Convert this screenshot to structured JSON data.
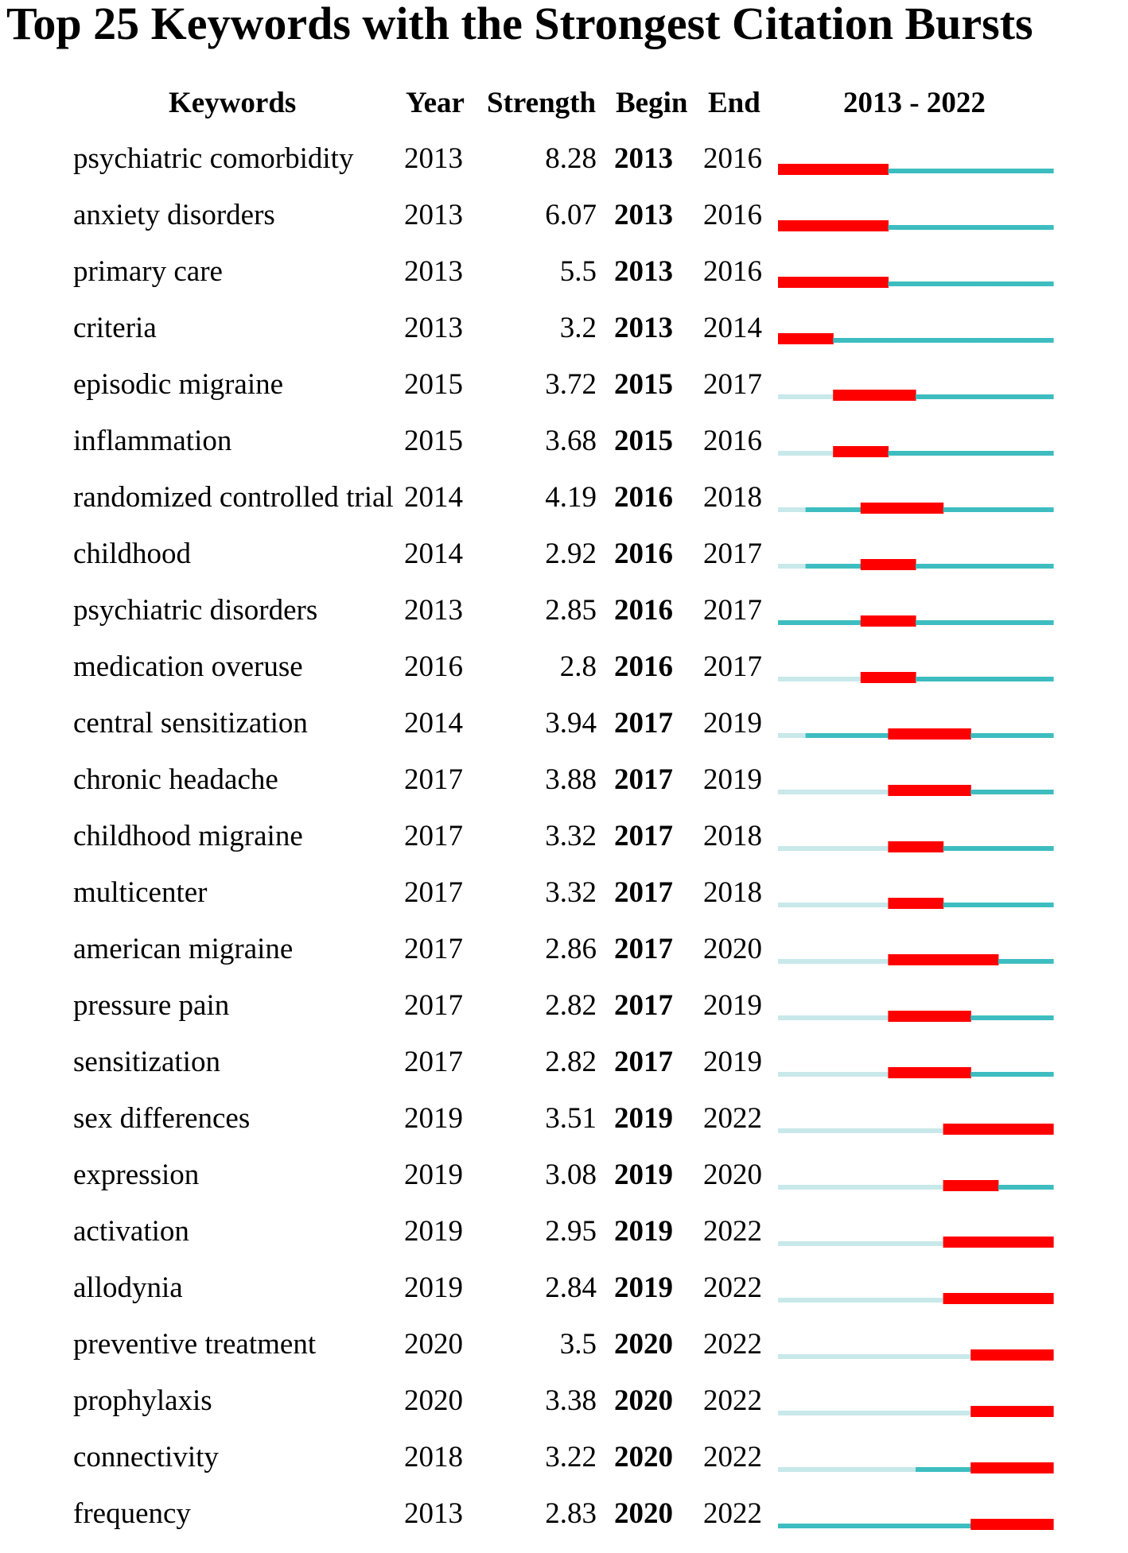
{
  "colors": {
    "burst": "#ff0000",
    "active": "#3dbdc0",
    "inactive": "#c8e8ea"
  },
  "chart_data": {
    "type": "table",
    "title": "Top 25 Keywords with the Strongest Citation Bursts",
    "columns": [
      "Keywords",
      "Year",
      "Strength",
      "Begin",
      "End",
      "2013 - 2022"
    ],
    "range": [
      2013,
      2022
    ],
    "rows": [
      {
        "keyword": "psychiatric comorbidity",
        "year": "2013",
        "strength": "8.28",
        "begin": "2013",
        "end": "2016"
      },
      {
        "keyword": "anxiety disorders",
        "year": "2013",
        "strength": "6.07",
        "begin": "2013",
        "end": "2016"
      },
      {
        "keyword": "primary care",
        "year": "2013",
        "strength": "5.5",
        "begin": "2013",
        "end": "2016"
      },
      {
        "keyword": "criteria",
        "year": "2013",
        "strength": "3.2",
        "begin": "2013",
        "end": "2014"
      },
      {
        "keyword": "episodic migraine",
        "year": "2015",
        "strength": "3.72",
        "begin": "2015",
        "end": "2017"
      },
      {
        "keyword": "inflammation",
        "year": "2015",
        "strength": "3.68",
        "begin": "2015",
        "end": "2016"
      },
      {
        "keyword": "randomized controlled trial",
        "year": "2014",
        "strength": "4.19",
        "begin": "2016",
        "end": "2018"
      },
      {
        "keyword": "childhood",
        "year": "2014",
        "strength": "2.92",
        "begin": "2016",
        "end": "2017"
      },
      {
        "keyword": "psychiatric disorders",
        "year": "2013",
        "strength": "2.85",
        "begin": "2016",
        "end": "2017"
      },
      {
        "keyword": "medication overuse",
        "year": "2016",
        "strength": "2.8",
        "begin": "2016",
        "end": "2017"
      },
      {
        "keyword": "central sensitization",
        "year": "2014",
        "strength": "3.94",
        "begin": "2017",
        "end": "2019"
      },
      {
        "keyword": "chronic headache",
        "year": "2017",
        "strength": "3.88",
        "begin": "2017",
        "end": "2019"
      },
      {
        "keyword": "childhood migraine",
        "year": "2017",
        "strength": "3.32",
        "begin": "2017",
        "end": "2018"
      },
      {
        "keyword": "multicenter",
        "year": "2017",
        "strength": "3.32",
        "begin": "2017",
        "end": "2018"
      },
      {
        "keyword": "american migraine",
        "year": "2017",
        "strength": "2.86",
        "begin": "2017",
        "end": "2020"
      },
      {
        "keyword": "pressure pain",
        "year": "2017",
        "strength": "2.82",
        "begin": "2017",
        "end": "2019"
      },
      {
        "keyword": "sensitization",
        "year": "2017",
        "strength": "2.82",
        "begin": "2017",
        "end": "2019"
      },
      {
        "keyword": "sex differences",
        "year": "2019",
        "strength": "3.51",
        "begin": "2019",
        "end": "2022"
      },
      {
        "keyword": "expression",
        "year": "2019",
        "strength": "3.08",
        "begin": "2019",
        "end": "2020"
      },
      {
        "keyword": "activation",
        "year": "2019",
        "strength": "2.95",
        "begin": "2019",
        "end": "2022"
      },
      {
        "keyword": "allodynia",
        "year": "2019",
        "strength": "2.84",
        "begin": "2019",
        "end": "2022"
      },
      {
        "keyword": "preventive treatment",
        "year": "2020",
        "strength": "3.5",
        "begin": "2020",
        "end": "2022"
      },
      {
        "keyword": "prophylaxis",
        "year": "2020",
        "strength": "3.38",
        "begin": "2020",
        "end": "2022"
      },
      {
        "keyword": "connectivity",
        "year": "2018",
        "strength": "3.22",
        "begin": "2020",
        "end": "2022"
      },
      {
        "keyword": "frequency",
        "year": "2013",
        "strength": "2.83",
        "begin": "2020",
        "end": "2022"
      }
    ]
  }
}
